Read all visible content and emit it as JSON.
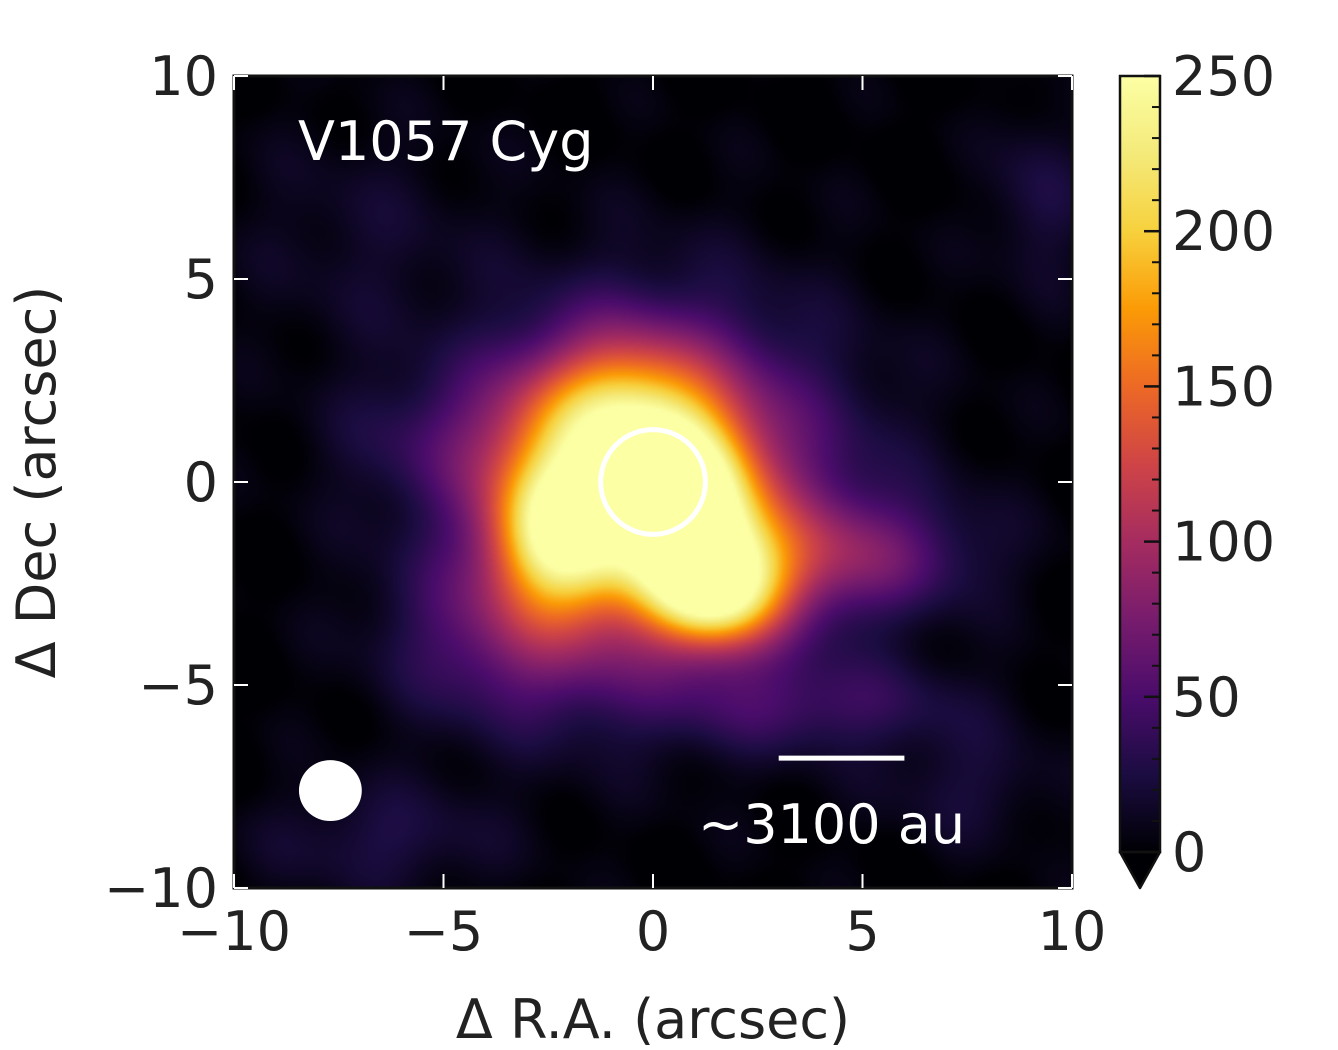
{
  "chart_data": {
    "type": "heatmap",
    "object_label": "V1057 Cyg",
    "xlabel": "Δ R.A. (arcsec)",
    "ylabel": "Δ Dec (arcsec)",
    "xlim": [
      -10,
      10
    ],
    "ylim": [
      -10,
      10
    ],
    "x_ticks": [
      -10,
      -5,
      0,
      5,
      10
    ],
    "y_ticks": [
      -10,
      -5,
      0,
      5,
      10
    ],
    "x_tick_labels": [
      "−10",
      "−5",
      "0",
      "5",
      "10"
    ],
    "y_tick_labels": [
      "−10",
      "−5",
      "0",
      "5",
      "10"
    ],
    "colorbar": {
      "range": [
        0,
        250
      ],
      "ticks": [
        0,
        50,
        100,
        150,
        200,
        250
      ],
      "tick_labels": [
        "0",
        "50",
        "100",
        "150",
        "200",
        "250"
      ],
      "extend": "min",
      "colormap": "inferno"
    },
    "emission_peak_value": 250,
    "emission_components": [
      {
        "x": 0.7,
        "y": -0.6,
        "sigma_x": 1.1,
        "sigma_y": 1.3,
        "value": 235
      },
      {
        "x": -2.2,
        "y": -1.2,
        "sigma_x": 1.1,
        "sigma_y": 1.3,
        "value": 195
      },
      {
        "x": 1.5,
        "y": -2.6,
        "sigma_x": 1.1,
        "sigma_y": 1.0,
        "value": 200
      },
      {
        "x": -0.8,
        "y": 1.5,
        "sigma_x": 1.6,
        "sigma_y": 1.4,
        "value": 150
      },
      {
        "x": 0.2,
        "y": -0.3,
        "sigma_x": 3.0,
        "sigma_y": 2.9,
        "value": 115
      },
      {
        "x": 4.5,
        "y": -1.8,
        "sigma_x": 2.2,
        "sigma_y": 1.0,
        "value": 60
      },
      {
        "x": -3.2,
        "y": -3.8,
        "sigma_x": 2.0,
        "sigma_y": 1.5,
        "value": 55
      },
      {
        "x": -4.5,
        "y": 1.0,
        "sigma_x": 2.0,
        "sigma_y": 1.2,
        "value": 30
      },
      {
        "x": 4.0,
        "y": -5.5,
        "sigma_x": 2.5,
        "sigma_y": 0.8,
        "value": 35
      },
      {
        "x": 9.2,
        "y": 7.0,
        "sigma_x": 0.8,
        "sigma_y": 1.5,
        "value": 25
      },
      {
        "x": -7.0,
        "y": 6.0,
        "sigma_x": 2.0,
        "sigma_y": 2.0,
        "value": 15
      },
      {
        "x": -6.5,
        "y": -8.8,
        "sigma_x": 2.0,
        "sigma_y": 1.0,
        "value": 25
      },
      {
        "x": 7.5,
        "y": -7.5,
        "sigma_x": 1.5,
        "sigma_y": 1.0,
        "value": 20
      }
    ],
    "source_marker": {
      "x": 0,
      "y": 0,
      "radius": 1.25
    },
    "beam": {
      "x": -7.7,
      "y": -7.6,
      "width": 1.5,
      "height": 1.5
    },
    "scalebar": {
      "x_start": 3.0,
      "x_end": 6.0,
      "y": -6.8,
      "label": "~3100 au"
    }
  }
}
